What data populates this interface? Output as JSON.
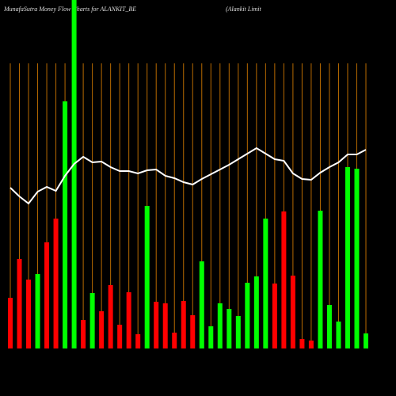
{
  "chart_data": {
    "type": "bar",
    "title": "MunafaSutra  Money Flow  Charts for ALANKIT_BE",
    "subtitle": "(Alankit Limit",
    "ylim": [
      0,
      440
    ],
    "grid": true,
    "grid_color": "#b86a00",
    "series": [
      {
        "type": "bar",
        "values": [
          64,
          113,
          87,
          94,
          134,
          164,
          312,
          440,
          36,
          70,
          47,
          80,
          30,
          71,
          18,
          180,
          59,
          57,
          20,
          60,
          42,
          110,
          28,
          57,
          50,
          41,
          83,
          91,
          164,
          82,
          173,
          92,
          12,
          10,
          174,
          55,
          34,
          229,
          227,
          19
        ],
        "colors": [
          "#ff0000",
          "#ff0000",
          "#ff0000",
          "#00ff00",
          "#ff0000",
          "#ff0000",
          "#00ff00",
          "#00ff00",
          "#ff0000",
          "#00ff00",
          "#ff0000",
          "#ff0000",
          "#ff0000",
          "#ff0000",
          "#ff0000",
          "#00ff00",
          "#ff0000",
          "#ff0000",
          "#ff0000",
          "#ff0000",
          "#ff0000",
          "#00ff00",
          "#00ff00",
          "#00ff00",
          "#00ff00",
          "#00ff00",
          "#00ff00",
          "#00ff00",
          "#00ff00",
          "#ff0000",
          "#ff0000",
          "#ff0000",
          "#ff0000",
          "#ff0000",
          "#00ff00",
          "#00ff00",
          "#00ff00",
          "#00ff00",
          "#00ff00",
          "#00ff00"
        ]
      },
      {
        "type": "line",
        "color": "#ffffff",
        "values": [
          203,
          192,
          183,
          198,
          204,
          199,
          218,
          233,
          242,
          235,
          236,
          229,
          224,
          224,
          221,
          225,
          226,
          218,
          215,
          210,
          207,
          214,
          220,
          226,
          232,
          239,
          246,
          253,
          246,
          239,
          237,
          221,
          214,
          213,
          222,
          229,
          235,
          245,
          245,
          251
        ]
      }
    ]
  }
}
